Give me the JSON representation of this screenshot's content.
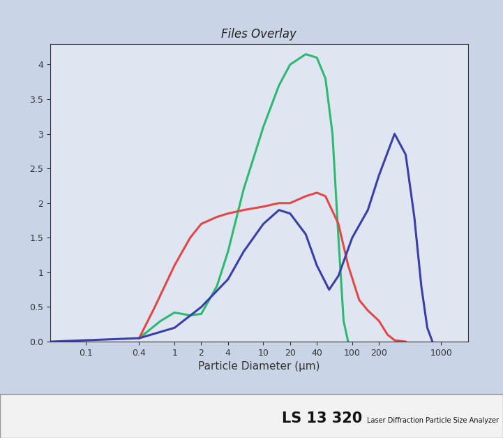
{
  "chart_data": {
    "type": "line",
    "title": "Files Overlay",
    "x_label": "Particle Diameter (µm)",
    "annotations": [
      "LS 13 320",
      "Laser Diffraction Particle Size Analyzer"
    ],
    "log": "x",
    "xlim": [
      0.04,
      2000
    ],
    "xticks": [
      0.1,
      0.4,
      1,
      2,
      4,
      10,
      20,
      40,
      100,
      200,
      1000
    ],
    "ylim": [
      0,
      4.3
    ],
    "yticks": [
      {
        "value": 0,
        "label": "0.0"
      },
      0.5,
      1,
      1.5,
      2,
      2.5,
      3,
      3.5,
      4
    ],
    "series": [
      {
        "color": "#2eb872",
        "x": [
          0.4,
          0.7,
          1,
          1.5,
          2,
          3,
          4,
          6,
          10,
          15,
          20,
          30,
          40,
          50,
          60,
          70,
          80,
          90
        ],
        "values": [
          0.05,
          0.3,
          0.42,
          0.38,
          0.4,
          0.8,
          1.3,
          2.2,
          3.1,
          3.7,
          4.0,
          4.15,
          4.1,
          3.8,
          3.0,
          1.5,
          0.3,
          0
        ]
      },
      {
        "color": "#e04848",
        "x": [
          0.4,
          0.6,
          1,
          1.5,
          2,
          3,
          4,
          6,
          10,
          15,
          20,
          30,
          40,
          50,
          70,
          90,
          120,
          150,
          200,
          250,
          300,
          400
        ],
        "values": [
          0.05,
          0.5,
          1.1,
          1.5,
          1.7,
          1.8,
          1.85,
          1.9,
          1.95,
          2.0,
          2.0,
          2.1,
          2.15,
          2.1,
          1.7,
          1.1,
          0.6,
          0.45,
          0.3,
          0.1,
          0.02,
          0
        ]
      },
      {
        "color": "#3a3fa8",
        "x": [
          0.04,
          0.1,
          0.4,
          1,
          2,
          4,
          6,
          10,
          15,
          20,
          30,
          40,
          55,
          70,
          100,
          150,
          200,
          300,
          400,
          500,
          600,
          700,
          800
        ],
        "values": [
          0,
          0.02,
          0.05,
          0.2,
          0.5,
          0.9,
          1.3,
          1.7,
          1.9,
          1.85,
          1.55,
          1.1,
          0.75,
          0.95,
          1.5,
          1.9,
          2.4,
          3.0,
          2.7,
          1.8,
          0.8,
          0.2,
          0
        ]
      }
    ]
  }
}
